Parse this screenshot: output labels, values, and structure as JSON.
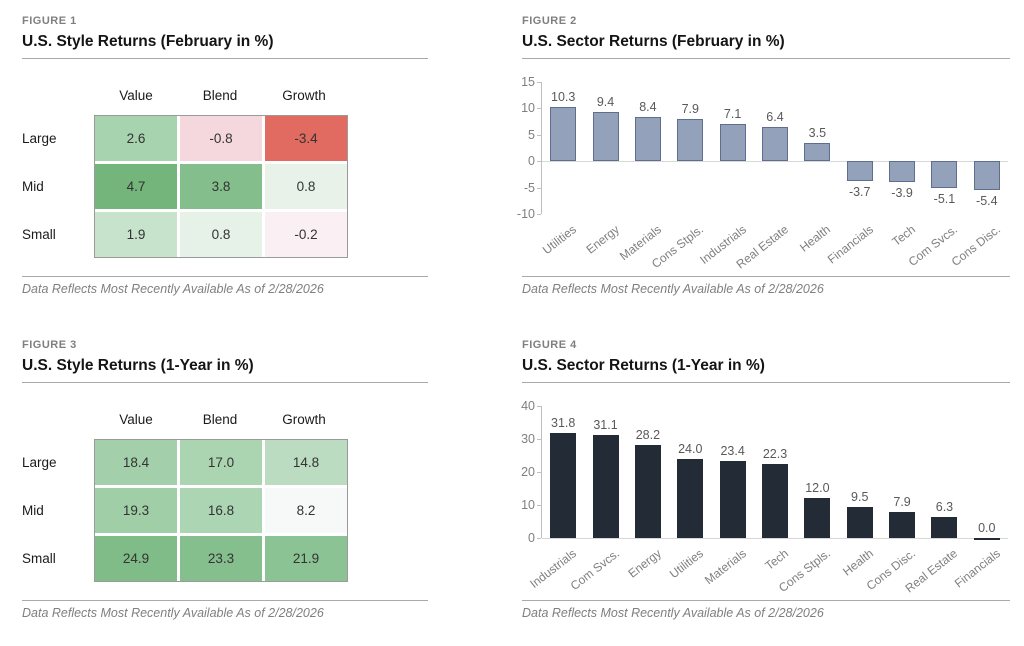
{
  "chart_data": [
    {
      "id": "figure1",
      "type": "heatmap",
      "figure_label": "FIGURE 1",
      "title": "U.S. Style Returns (February in %)",
      "columns": [
        "Value",
        "Blend",
        "Growth"
      ],
      "rows": [
        "Large",
        "Mid",
        "Small"
      ],
      "values": [
        [
          2.6,
          -0.8,
          -3.4
        ],
        [
          4.7,
          3.8,
          0.8
        ],
        [
          1.9,
          0.8,
          -0.2
        ]
      ],
      "cell_colors": [
        [
          "#a7d3ae",
          "#f5d8dd",
          "#e16a61"
        ],
        [
          "#73b57b",
          "#84be8c",
          "#e8f2e9"
        ],
        [
          "#c7e3cb",
          "#e6f1e8",
          "#faeff2"
        ]
      ],
      "footnote": "Data Reflects Most Recently Available As of 2/28/2026"
    },
    {
      "id": "figure2",
      "type": "bar",
      "figure_label": "FIGURE 2",
      "title": "U.S. Sector Returns (February in %)",
      "categories": [
        "Utilities",
        "Energy",
        "Materials",
        "Cons Stpls.",
        "Industrials",
        "Real Estate",
        "Health",
        "Financials",
        "Tech",
        "Com Svcs.",
        "Cons Disc."
      ],
      "values": [
        10.3,
        9.4,
        8.4,
        7.9,
        7.1,
        6.4,
        3.5,
        -3.7,
        -3.9,
        -5.1,
        -5.4
      ],
      "ylim": [
        -10,
        15
      ],
      "yticks": [
        15,
        10,
        5,
        0,
        -5,
        -10
      ],
      "bar_color": "#93a1bb",
      "bar_border": "#5f6e8c",
      "grid": "zero-line-only",
      "legend": "none",
      "footnote": "Data Reflects Most Recently Available As of 2/28/2026"
    },
    {
      "id": "figure3",
      "type": "heatmap",
      "figure_label": "FIGURE 3",
      "title": "U.S. Style Returns (1-Year in %)",
      "columns": [
        "Value",
        "Blend",
        "Growth"
      ],
      "rows": [
        "Large",
        "Mid",
        "Small"
      ],
      "values": [
        [
          18.4,
          17.0,
          14.8
        ],
        [
          19.3,
          16.8,
          8.2
        ],
        [
          24.9,
          23.3,
          21.9
        ]
      ],
      "cell_colors": [
        [
          "#a3d0aa",
          "#abd5b1",
          "#bbdcc0"
        ],
        [
          "#a0cfa7",
          "#acd5b3",
          "#f7f9f8"
        ],
        [
          "#7fbc87",
          "#85bf8d",
          "#8cc394"
        ]
      ],
      "footnote": "Data Reflects Most Recently Available As of 2/28/2026"
    },
    {
      "id": "figure4",
      "type": "bar",
      "figure_label": "FIGURE 4",
      "title": "U.S. Sector Returns (1-Year in %)",
      "categories": [
        "Industrials",
        "Com Svcs.",
        "Energy",
        "Utilities",
        "Materials",
        "Tech",
        "Cons Stpls.",
        "Health",
        "Cons Disc.",
        "Real Estate",
        "Financials"
      ],
      "values": [
        31.8,
        31.1,
        28.2,
        24.0,
        23.4,
        22.3,
        12.0,
        9.5,
        7.9,
        6.3,
        0.0
      ],
      "ylim": [
        0,
        40
      ],
      "yticks": [
        40,
        30,
        20,
        10,
        0
      ],
      "bar_color": "#222b36",
      "bar_border": "#222b36",
      "grid": "zero-line-only",
      "legend": "none",
      "footnote": "Data Reflects Most Recently Available As of 2/28/2026"
    }
  ]
}
